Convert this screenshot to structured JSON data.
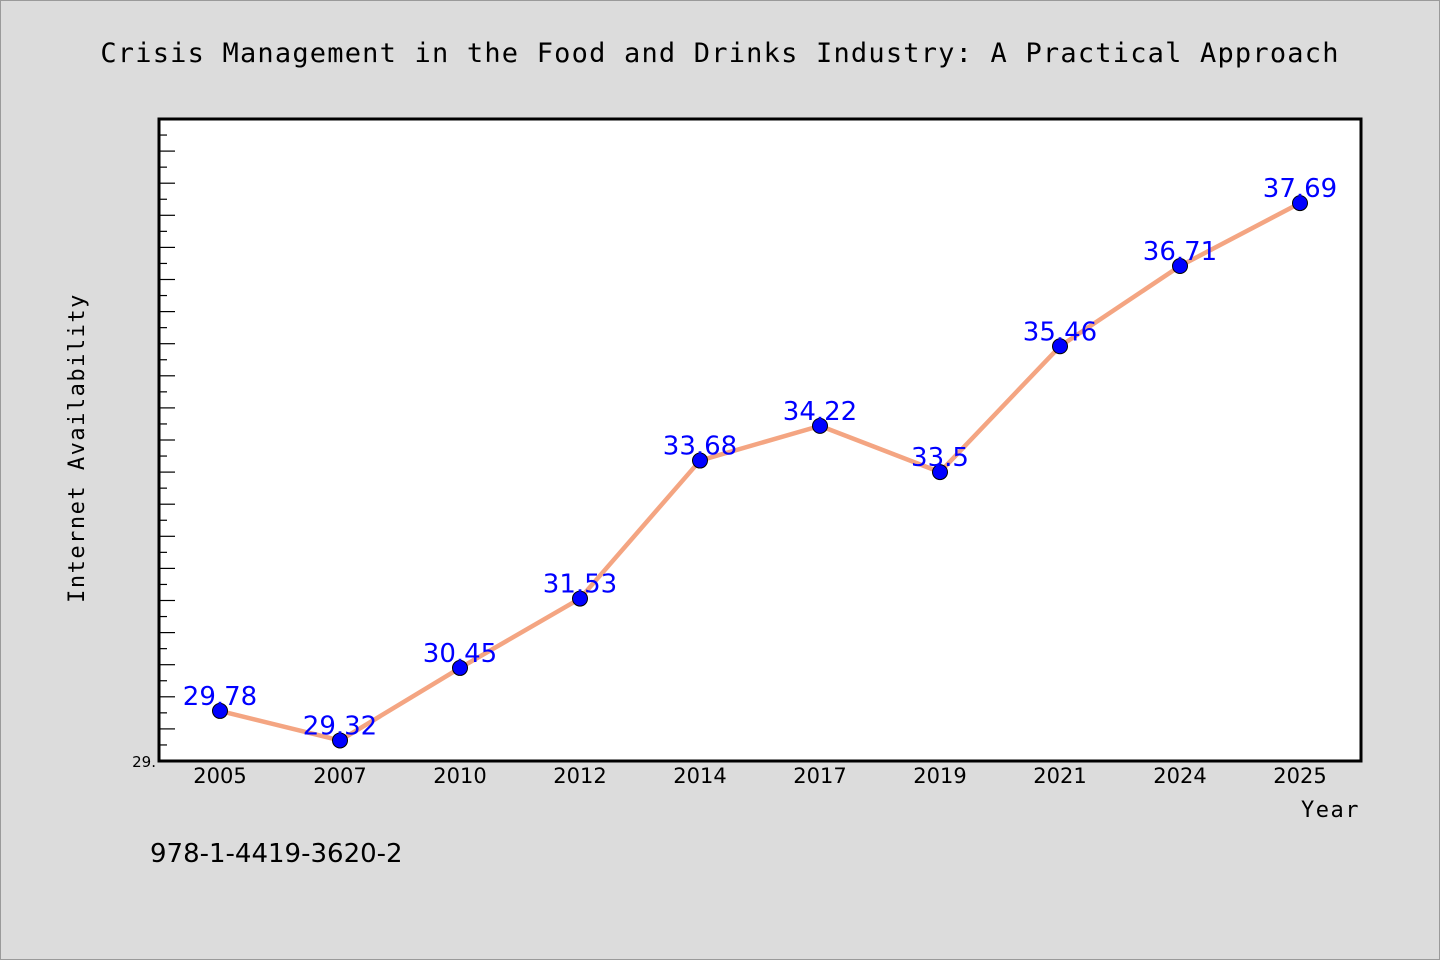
{
  "chart_data": {
    "type": "line",
    "title": "Crisis Management in the Food and Drinks Industry: A Practical Approach",
    "xlabel": "Year",
    "ylabel": "Internet Availability",
    "categories": [
      "2005",
      "2007",
      "2010",
      "2012",
      "2014",
      "2017",
      "2019",
      "2021",
      "2024",
      "2025"
    ],
    "values": [
      29.78,
      29.32,
      30.45,
      31.53,
      33.68,
      34.22,
      33.5,
      35.46,
      36.71,
      37.69
    ],
    "data_labels": [
      "29.78",
      "29.32",
      "30.45",
      "31.53",
      "33.68",
      "34.22",
      "33.5",
      "35.46",
      "36.71",
      "37.69"
    ],
    "ylim": [
      29.0,
      39.0
    ],
    "y_tick_labels": [
      "29."
    ],
    "grid": false,
    "legend": "none",
    "line_color": "#f4a582",
    "marker_color": "#0000ff",
    "label_color": "#0000ff"
  },
  "footer": {
    "isbn": "978-1-4419-3620-2"
  }
}
